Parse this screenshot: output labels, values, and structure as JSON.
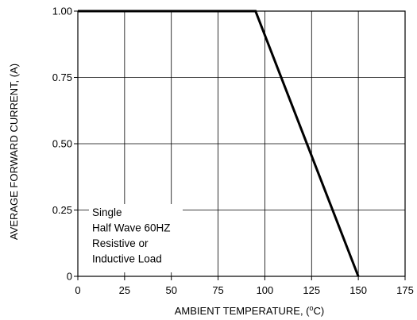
{
  "chart_data": {
    "type": "line",
    "title": "",
    "xlabel": "AMBIENT TEMPERATURE, (",
    "xlabel_sup": "o",
    "xlabel_unit": "C)",
    "ylabel": "AVERAGE FORWARD CURRENT, (A)",
    "xlim": [
      0,
      175
    ],
    "ylim": [
      0,
      1.0
    ],
    "x_ticks": [
      0,
      25,
      50,
      75,
      100,
      125,
      150,
      175
    ],
    "x_tick_labels": [
      "0",
      "25",
      "50",
      "75",
      "100",
      "125",
      "150",
      "175"
    ],
    "y_ticks": [
      0,
      0.25,
      0.5,
      0.75,
      1.0
    ],
    "y_tick_labels": [
      "0",
      "0.25",
      "0.50",
      "0.75",
      "1.00"
    ],
    "grid": true,
    "series": [
      {
        "x": [
          0,
          95,
          150
        ],
        "y": [
          1.0,
          1.0,
          0
        ]
      }
    ],
    "annotation": [
      "Single",
      "Half Wave 60HZ",
      "Resistive or",
      "Inductive Load"
    ]
  },
  "colors": {
    "line": "#000000",
    "grid": "#000000",
    "background": "#ffffff"
  }
}
